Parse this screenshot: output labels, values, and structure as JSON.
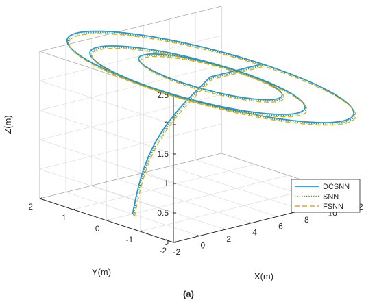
{
  "caption": "(a)",
  "chart_data": {
    "type": "line3d",
    "xlabel": "X(m)",
    "ylabel": "Y(m)",
    "zlabel": "Z(m)",
    "xlim": [
      -2,
      12
    ],
    "ylim": [
      -2,
      2
    ],
    "zlim": [
      0,
      2.5
    ],
    "x_ticks": [
      "-2",
      "0",
      "2",
      "4",
      "6",
      "8",
      "10",
      "12"
    ],
    "y_ticks": [
      "-2",
      "-1",
      "0",
      "1",
      "2"
    ],
    "z_ticks": [
      "0",
      "0.5",
      "1",
      "1.5",
      "2",
      "2.5"
    ],
    "grid": true,
    "legend_position": "bottom-right",
    "series": [
      {
        "name": "DCSNN",
        "color": "#1f9ad6",
        "dash": "solid"
      },
      {
        "name": "SNN",
        "color": "#4a8f1f",
        "dash": "dotted"
      },
      {
        "name": "FSNN",
        "color": "#e0a82a",
        "dash": "dashed"
      }
    ],
    "trajectory": {
      "start": {
        "x": 0,
        "y": 0,
        "z": 0
      },
      "ascent_end": {
        "x": 6,
        "y": 0,
        "z": 2
      },
      "loop_1": {
        "center_x": 6,
        "center_y": 0,
        "radius": 2,
        "z": 2
      },
      "loop_2": {
        "center_x": 5,
        "center_y": 0,
        "radius": 3,
        "z": 2
      },
      "loop_3": {
        "center_x": 6,
        "center_y": 0,
        "radius": 4,
        "z": 2
      }
    }
  }
}
